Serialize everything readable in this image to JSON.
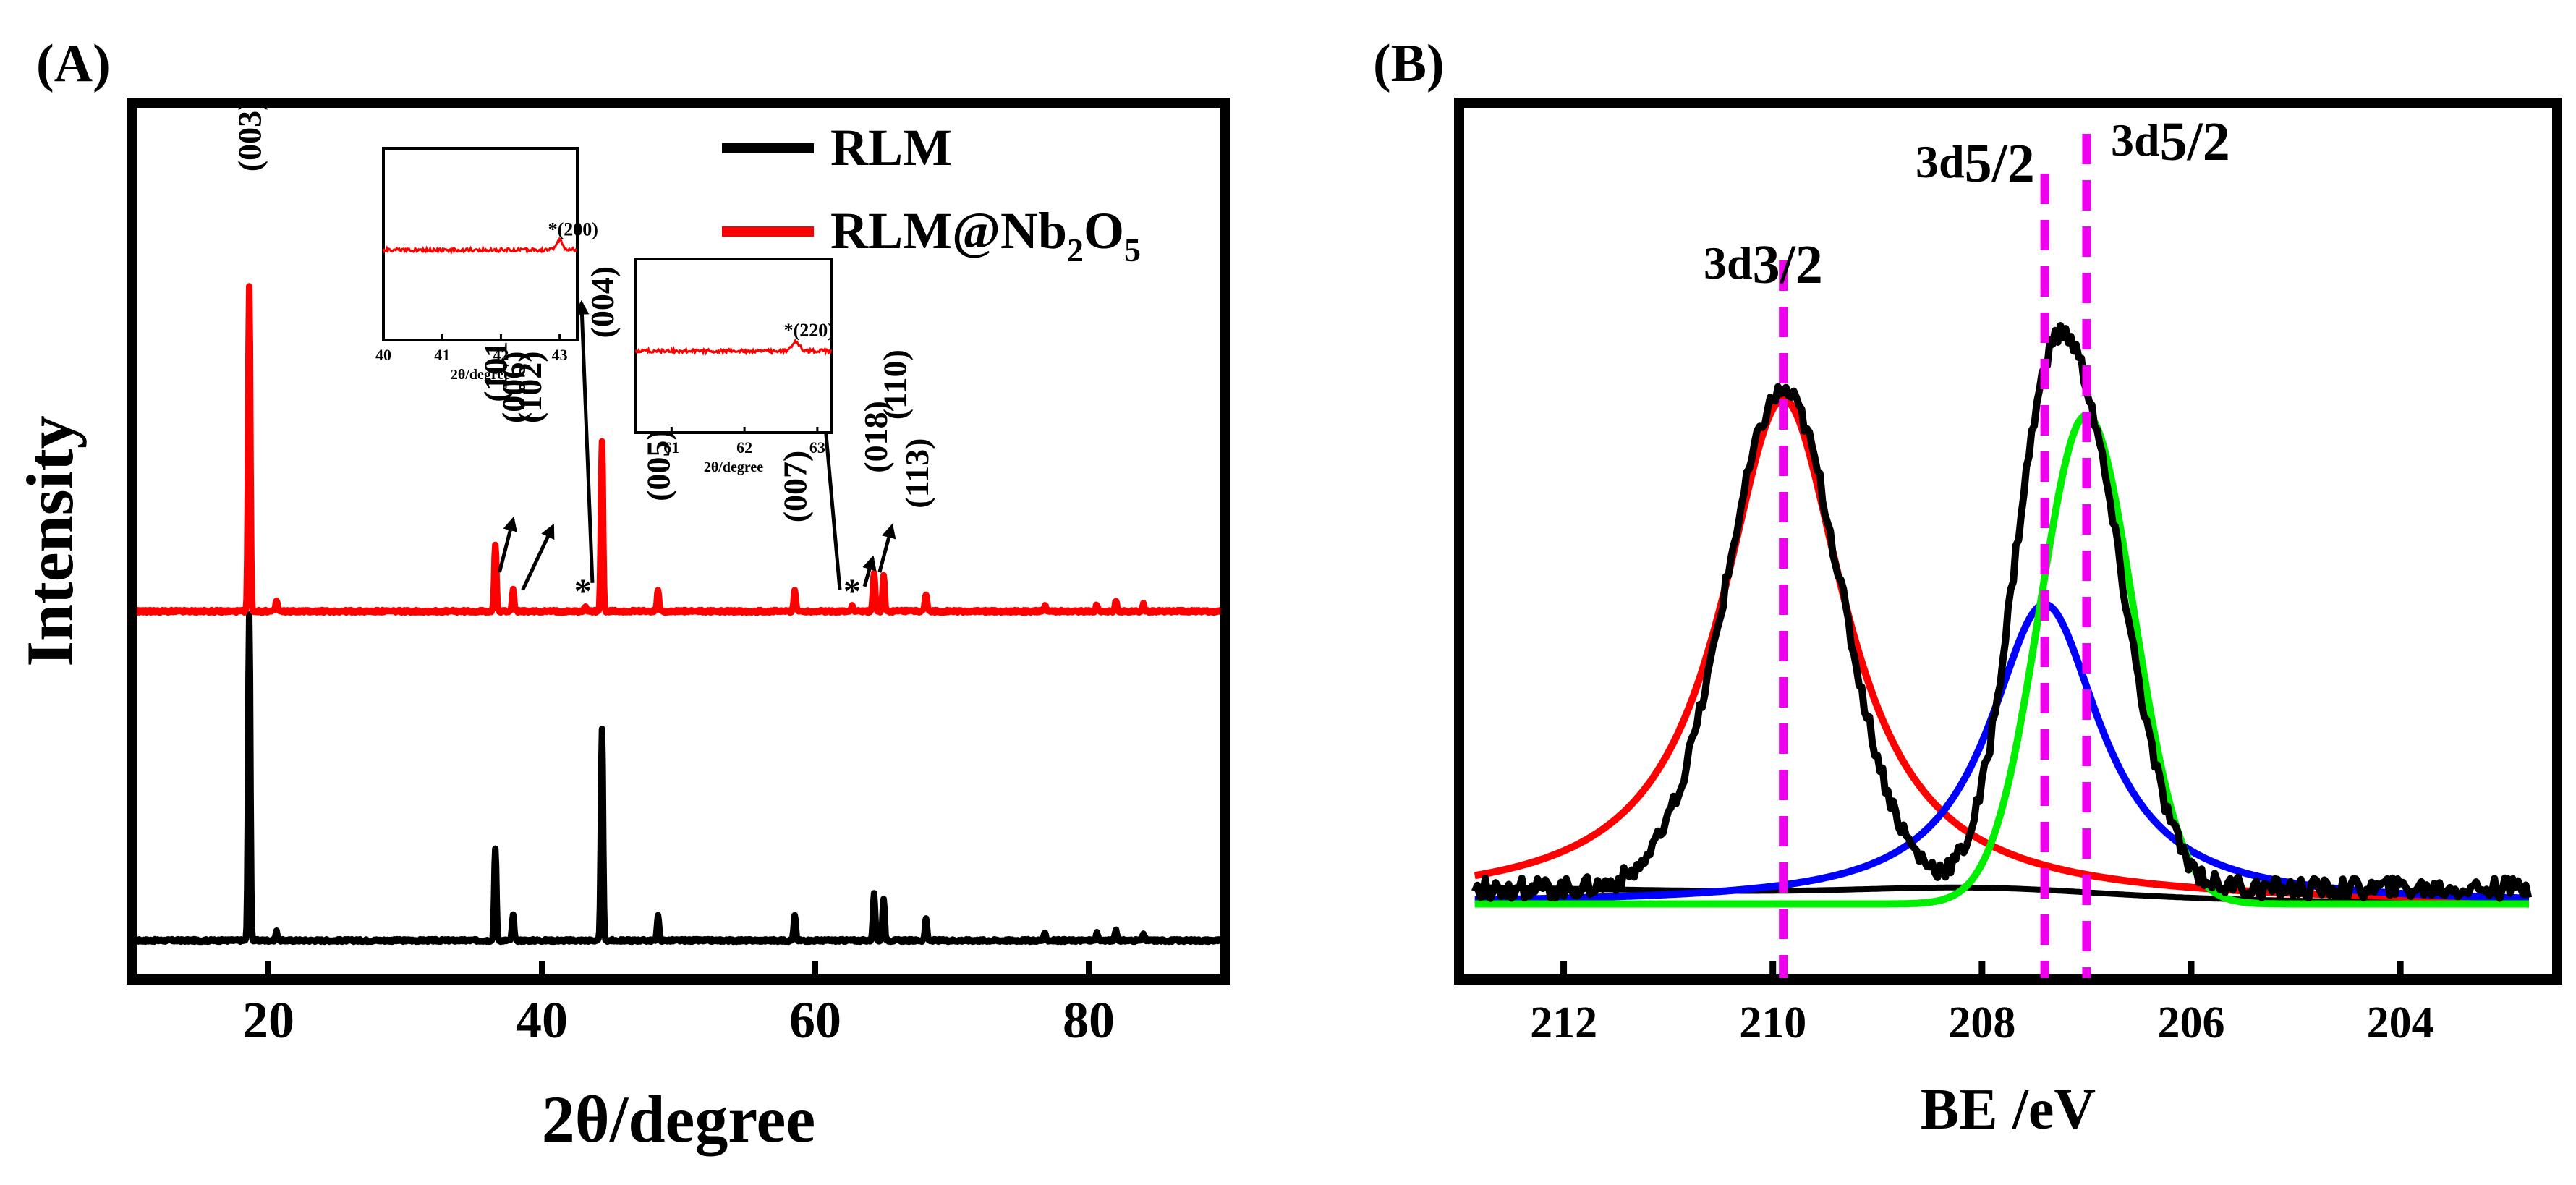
{
  "chart_data": [
    {
      "id": "A",
      "panel_label": "(A)",
      "type": "line",
      "xlabel": "2θ/degree",
      "ylabel": "Intensity",
      "xlim": [
        10,
        90
      ],
      "x_ticks": [
        20,
        40,
        60,
        80
      ],
      "x_tick_labels": [
        "20",
        "40",
        "60",
        "80"
      ],
      "legend": {
        "position": "top-right",
        "entries": [
          {
            "name": "RLM",
            "color": "#000000"
          },
          {
            "name": "RLM@Nb",
            "sub1": "2",
            "mid": "O",
            "sub2": "5",
            "color": "#ff0000"
          }
        ]
      },
      "series": [
        {
          "name": "RLM",
          "color": "#000000",
          "baseline": 0,
          "peaks": [
            {
              "x": 18.6,
              "h": 92
            },
            {
              "x": 20.6,
              "h": 2.5
            },
            {
              "x": 36.6,
              "h": 26
            },
            {
              "x": 37.9,
              "h": 7
            },
            {
              "x": 44.4,
              "h": 60
            },
            {
              "x": 48.5,
              "h": 7
            },
            {
              "x": 58.5,
              "h": 7
            },
            {
              "x": 64.3,
              "h": 13
            },
            {
              "x": 65.0,
              "h": 12
            },
            {
              "x": 68.1,
              "h": 6
            },
            {
              "x": 76.8,
              "h": 2
            },
            {
              "x": 80.6,
              "h": 2
            },
            {
              "x": 82.0,
              "h": 3
            },
            {
              "x": 84.0,
              "h": 2
            }
          ]
        },
        {
          "name": "RLM@Nb2O5",
          "color": "#ff0000",
          "baseline": 100,
          "peaks": [
            {
              "x": 18.6,
              "h": 92
            },
            {
              "x": 20.6,
              "h": 3
            },
            {
              "x": 36.6,
              "h": 19
            },
            {
              "x": 37.9,
              "h": 6
            },
            {
              "x": 43.2,
              "h": 1.5
            },
            {
              "x": 44.4,
              "h": 48
            },
            {
              "x": 48.5,
              "h": 6
            },
            {
              "x": 58.5,
              "h": 6
            },
            {
              "x": 62.7,
              "h": 1.5
            },
            {
              "x": 64.3,
              "h": 11
            },
            {
              "x": 65.0,
              "h": 10
            },
            {
              "x": 68.1,
              "h": 5
            },
            {
              "x": 76.8,
              "h": 1.5
            },
            {
              "x": 80.6,
              "h": 2
            },
            {
              "x": 82.0,
              "h": 3
            },
            {
              "x": 84.0,
              "h": 2
            }
          ]
        }
      ],
      "annotations": [
        {
          "text": "(003)",
          "x": 18.6,
          "y": 222
        },
        {
          "text": "(101)",
          "x": 36.6,
          "y": 157
        },
        {
          "text": "(006)",
          "x": 37.9,
          "y": 151
        },
        {
          "text": "(102)",
          "x": 39.1,
          "y": 151
        },
        {
          "text": "(004)",
          "x": 44.4,
          "y": 175
        },
        {
          "text": "(005)",
          "x": 48.5,
          "y": 129
        },
        {
          "text": "(007)",
          "x": 58.5,
          "y": 123
        },
        {
          "text": "(018)",
          "x": 64.4,
          "y": 137
        },
        {
          "text": "(110)",
          "x": 65.8,
          "y": 152
        },
        {
          "text": "(113)",
          "x": 67.4,
          "y": 127
        }
      ],
      "markers": [
        {
          "text": "*",
          "x": 43.0,
          "y": 101
        },
        {
          "text": "*",
          "x": 62.7,
          "y": 101
        }
      ],
      "arrows": [
        {
          "from": [
            36.9,
            111
          ],
          "to": [
            37.9,
            126
          ]
        },
        {
          "from": [
            38.6,
            106
          ],
          "to": [
            40.8,
            124
          ]
        },
        {
          "from": [
            43.7,
            108
          ],
          "to": [
            42.9,
            187
          ]
        },
        {
          "from": [
            61.8,
            106
          ],
          "to": [
            60.4,
            167
          ]
        },
        {
          "from": [
            63.6,
            107
          ],
          "to": [
            64.2,
            115
          ]
        },
        {
          "from": [
            64.7,
            111
          ],
          "to": [
            65.6,
            124
          ]
        }
      ],
      "insets": [
        {
          "xlim": [
            40,
            43.3
          ],
          "x_ticks": [
            "40",
            "41",
            "42",
            "43"
          ],
          "xlabel": "2θ/degree",
          "peak_label": "*(200)",
          "peak_x": 43.0
        },
        {
          "xlim": [
            60.5,
            63.2
          ],
          "x_ticks": [
            "61",
            "62",
            "63"
          ],
          "xlabel": "2θ/degree",
          "peak_label": "*(220)",
          "peak_x": 62.7
        }
      ]
    },
    {
      "id": "B",
      "panel_label": "(B)",
      "type": "line",
      "xlabel": "BE /eV",
      "ylabel": "",
      "xlim": [
        213,
        202.5
      ],
      "x_ticks": [
        212,
        210,
        208,
        206,
        204
      ],
      "x_tick_labels": [
        "212",
        "210",
        "208",
        "206",
        "204"
      ],
      "series": [
        {
          "name": "raw",
          "color": "#000000",
          "peaks": [
            {
              "x": 209.9,
              "a": 64.5,
              "w": 0.75
            },
            {
              "x": 207.4,
              "a": 48,
              "w": 0.55
            },
            {
              "x": 207.0,
              "a": 55,
              "w": 0.55
            }
          ],
          "offset": -2
        },
        {
          "name": "Nb 3d3/2 fit",
          "color": "#ff0000",
          "peaks": [
            {
              "x": 209.9,
              "a": 64,
              "w": 0.72
            }
          ]
        },
        {
          "name": "Nb 3d5/2 fit A",
          "color": "#0000ff",
          "peaks": [
            {
              "x": 207.4,
              "a": 38,
              "w": 0.65
            }
          ]
        },
        {
          "name": "Nb 3d5/2 fit B",
          "color": "#00ee00",
          "peaks": [
            {
              "x": 207.0,
              "a": 62,
              "w": 0.55
            }
          ]
        },
        {
          "name": "background",
          "color": "#000000"
        }
      ],
      "dashed_lines": [
        {
          "x": 209.9,
          "label_main": "3d",
          "label_frac": "3/2",
          "color": "#ee00ee"
        },
        {
          "x": 207.4,
          "label_main": "3d",
          "label_frac": "5/2",
          "color": "#ee00ee"
        },
        {
          "x": 207.0,
          "label_main": "3d",
          "label_frac": "5/2",
          "color": "#ee00ee"
        }
      ]
    }
  ]
}
